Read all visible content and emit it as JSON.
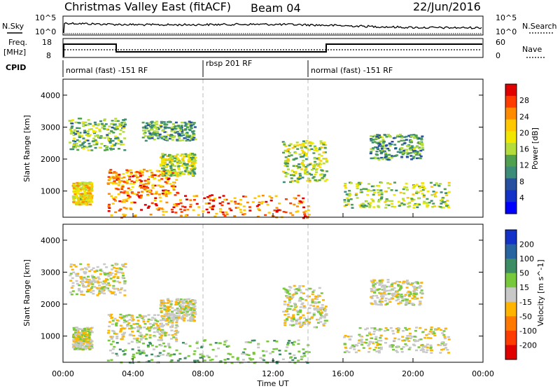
{
  "header": {
    "site": "Christmas Valley East (fitACF)",
    "beam": "Beam 04",
    "date": "22/Jun/2016"
  },
  "strips": {
    "nsky": "N.Sky",
    "nsearch": "N.Search",
    "nsky_ticks": [
      "10^5",
      "10^0"
    ],
    "nsearch_ticks": [
      "10^5",
      "10^0"
    ],
    "freq_label_1": "Freq.",
    "freq_label_2": "[MHz]",
    "freq_ticks": [
      "18",
      "8"
    ],
    "nave": "Nave",
    "nave_ticks": [
      "60",
      "0"
    ],
    "cpid": "CPID",
    "cpid_segments": [
      {
        "label": "normal (fast) -151 RF",
        "start_h": 0,
        "end_h": 8
      },
      {
        "label": "rbsp 201 RF",
        "start_h": 8,
        "end_h": 14
      },
      {
        "label": "normal (fast) -151 RF",
        "start_h": 14,
        "end_h": 24
      }
    ]
  },
  "chart_data": [
    {
      "type": "heatmap",
      "title": "",
      "xlabel": "",
      "ylabel": "Slant Range [km]",
      "xlim": [
        0,
        24
      ],
      "ylim": [
        180,
        4500
      ],
      "yticks": [
        1000,
        2000,
        3000,
        4000
      ],
      "colorbar": {
        "label": "Power [dB]",
        "ticks": [
          "28",
          "24",
          "20",
          "16",
          "12",
          "8",
          "4"
        ],
        "colors": [
          "#e00000",
          "#ff3c00",
          "#ff8c00",
          "#ffc800",
          "#f0e600",
          "#b4dc3c",
          "#50a050",
          "#3c8c78",
          "#2850a0",
          "#1432c8",
          "#0000ff"
        ]
      },
      "scatter_regions": [
        {
          "x": [
            0.5,
            1.6
          ],
          "y": [
            600,
            1300
          ],
          "power": 18
        },
        {
          "x": [
            0.3,
            3.5
          ],
          "y": [
            2300,
            3300
          ],
          "power": 12
        },
        {
          "x": [
            2.5,
            6.5
          ],
          "y": [
            900,
            1700
          ],
          "power": 22
        },
        {
          "x": [
            2.5,
            14.0
          ],
          "y": [
            180,
            900
          ],
          "power": 24
        },
        {
          "x": [
            5.5,
            7.5
          ],
          "y": [
            1500,
            2200
          ],
          "power": 14
        },
        {
          "x": [
            4.5,
            7.5
          ],
          "y": [
            2600,
            3200
          ],
          "power": 10
        },
        {
          "x": [
            12.5,
            15.0
          ],
          "y": [
            1300,
            2600
          ],
          "power": 14
        },
        {
          "x": [
            16.0,
            22.0
          ],
          "y": [
            500,
            1300
          ],
          "power": 14
        },
        {
          "x": [
            17.5,
            20.5
          ],
          "y": [
            2000,
            2800
          ],
          "power": 10
        }
      ]
    },
    {
      "type": "heatmap",
      "title": "",
      "xlabel": "Time UT",
      "ylabel": "Slant Range [km]",
      "xlim": [
        0,
        24
      ],
      "ylim": [
        180,
        4500
      ],
      "xticks": [
        "00:00",
        "04:00",
        "08:00",
        "12:00",
        "16:00",
        "20:00",
        "00:00"
      ],
      "yticks": [
        1000,
        2000,
        3000,
        4000
      ],
      "colorbar": {
        "label": "Velocity [m s^-1]",
        "ticks": [
          "200",
          "100",
          "50",
          "15",
          "-15",
          "-50",
          "-100",
          "-200"
        ],
        "colors": [
          "#1432c8",
          "#2864a0",
          "#3c8c64",
          "#78c83c",
          "#c8c8c8",
          "#ffb400",
          "#ff7800",
          "#ff3c00",
          "#e00000"
        ]
      },
      "scatter_regions": [
        {
          "x": [
            0.5,
            1.6
          ],
          "y": [
            600,
            1300
          ],
          "velocity": 0
        },
        {
          "x": [
            0.3,
            3.5
          ],
          "y": [
            2300,
            3300
          ],
          "velocity": 0
        },
        {
          "x": [
            2.5,
            6.5
          ],
          "y": [
            900,
            1700
          ],
          "velocity": 0
        },
        {
          "x": [
            2.5,
            14.0
          ],
          "y": [
            180,
            900
          ],
          "velocity": 40
        },
        {
          "x": [
            5.5,
            7.5
          ],
          "y": [
            1500,
            2200
          ],
          "velocity": 0
        },
        {
          "x": [
            12.5,
            15.0
          ],
          "y": [
            1300,
            2600
          ],
          "velocity": 0
        },
        {
          "x": [
            16.0,
            22.0
          ],
          "y": [
            500,
            1300
          ],
          "velocity": 0
        },
        {
          "x": [
            17.5,
            20.5
          ],
          "y": [
            2000,
            2800
          ],
          "velocity": 0
        }
      ]
    }
  ]
}
